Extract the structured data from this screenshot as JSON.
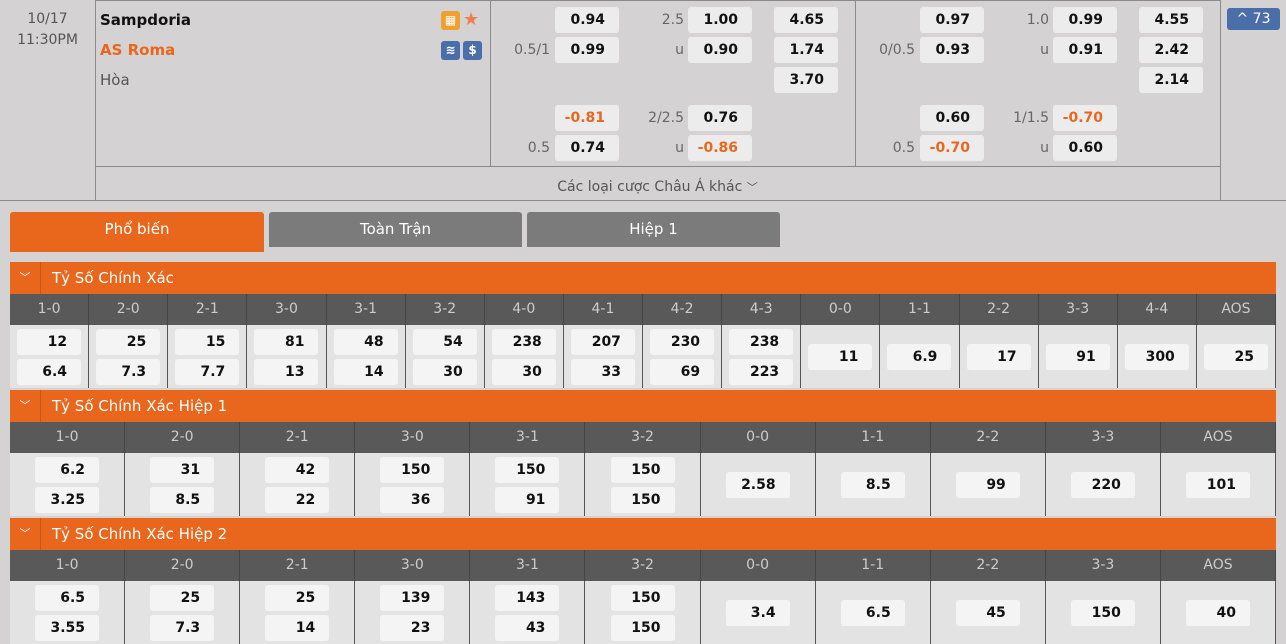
{
  "match": {
    "date": "10/17",
    "time": "11:30PM",
    "home": "Sampdoria",
    "away": "AS Roma",
    "draw": "Hòa",
    "more_label": "Các loại cược Châu Á khác",
    "more_count": "73"
  },
  "icons": {
    "field": "field-icon",
    "star": "star-icon",
    "stats": "stats-icon",
    "dollar": "dollar-icon"
  },
  "odds": [
    {
      "rows": [
        {
          "l1": "",
          "v1": "0.94",
          "l2": "2.5",
          "v2": "1.00",
          "v3": "4.65"
        },
        {
          "l1": "0.5/1",
          "v1": "0.99",
          "l2": "u",
          "v2": "0.90",
          "v3": "1.74"
        },
        {
          "l1": "",
          "v1": "",
          "l2": "",
          "v2": "",
          "v3": "3.70"
        },
        {
          "l1": "",
          "v1": "-0.81",
          "l2": "2/2.5",
          "v2": "0.76",
          "v3": ""
        },
        {
          "l1": "0.5",
          "v1": "0.74",
          "l2": "u",
          "v2": "-0.86",
          "v3": ""
        }
      ]
    },
    {
      "rows": [
        {
          "l1": "",
          "v1": "0.97",
          "l2": "1.0",
          "v2": "0.99",
          "v3": "4.55"
        },
        {
          "l1": "0/0.5",
          "v1": "0.93",
          "l2": "u",
          "v2": "0.91",
          "v3": "2.42"
        },
        {
          "l1": "",
          "v1": "",
          "l2": "",
          "v2": "",
          "v3": "2.14"
        },
        {
          "l1": "",
          "v1": "0.60",
          "l2": "1/1.5",
          "v2": "-0.70",
          "v3": ""
        },
        {
          "l1": "0.5",
          "v1": "-0.70",
          "l2": "u",
          "v2": "0.60",
          "v3": ""
        }
      ]
    }
  ],
  "tabs": [
    "Phổ biến",
    "Toàn Trận",
    "Hiệp 1"
  ],
  "sections": [
    {
      "title": "Tỷ Số Chính Xác",
      "cols": [
        {
          "h": "1-0",
          "v": [
            "12",
            "6.4"
          ]
        },
        {
          "h": "2-0",
          "v": [
            "25",
            "7.3"
          ]
        },
        {
          "h": "2-1",
          "v": [
            "15",
            "7.7"
          ]
        },
        {
          "h": "3-0",
          "v": [
            "81",
            "13"
          ]
        },
        {
          "h": "3-1",
          "v": [
            "48",
            "14"
          ]
        },
        {
          "h": "3-2",
          "v": [
            "54",
            "30"
          ]
        },
        {
          "h": "4-0",
          "v": [
            "238",
            "30"
          ]
        },
        {
          "h": "4-1",
          "v": [
            "207",
            "33"
          ]
        },
        {
          "h": "4-2",
          "v": [
            "230",
            "69"
          ]
        },
        {
          "h": "4-3",
          "v": [
            "238",
            "223"
          ]
        },
        {
          "h": "0-0",
          "v": [
            "11"
          ]
        },
        {
          "h": "1-1",
          "v": [
            "6.9"
          ]
        },
        {
          "h": "2-2",
          "v": [
            "17"
          ]
        },
        {
          "h": "3-3",
          "v": [
            "91"
          ]
        },
        {
          "h": "4-4",
          "v": [
            "300"
          ]
        },
        {
          "h": "AOS",
          "v": [
            "25"
          ]
        }
      ]
    },
    {
      "title": "Tỷ Số Chính Xác Hiệp 1",
      "cols": [
        {
          "h": "1-0",
          "v": [
            "6.2",
            "3.25"
          ]
        },
        {
          "h": "2-0",
          "v": [
            "31",
            "8.5"
          ]
        },
        {
          "h": "2-1",
          "v": [
            "42",
            "22"
          ]
        },
        {
          "h": "3-0",
          "v": [
            "150",
            "36"
          ]
        },
        {
          "h": "3-1",
          "v": [
            "150",
            "91"
          ]
        },
        {
          "h": "3-2",
          "v": [
            "150",
            "150"
          ]
        },
        {
          "h": "0-0",
          "v": [
            "2.58"
          ]
        },
        {
          "h": "1-1",
          "v": [
            "8.5"
          ]
        },
        {
          "h": "2-2",
          "v": [
            "99"
          ]
        },
        {
          "h": "3-3",
          "v": [
            "220"
          ]
        },
        {
          "h": "AOS",
          "v": [
            "101"
          ]
        }
      ]
    },
    {
      "title": "Tỷ Số Chính Xác Hiệp 2",
      "cols": [
        {
          "h": "1-0",
          "v": [
            "6.5",
            "3.55"
          ]
        },
        {
          "h": "2-0",
          "v": [
            "25",
            "7.3"
          ]
        },
        {
          "h": "2-1",
          "v": [
            "25",
            "14"
          ]
        },
        {
          "h": "3-0",
          "v": [
            "139",
            "23"
          ]
        },
        {
          "h": "3-1",
          "v": [
            "143",
            "43"
          ]
        },
        {
          "h": "3-2",
          "v": [
            "150",
            "150"
          ]
        },
        {
          "h": "0-0",
          "v": [
            "3.4"
          ]
        },
        {
          "h": "1-1",
          "v": [
            "6.5"
          ]
        },
        {
          "h": "2-2",
          "v": [
            "45"
          ]
        },
        {
          "h": "3-3",
          "v": [
            "150"
          ]
        },
        {
          "h": "AOS",
          "v": [
            "40"
          ]
        }
      ]
    }
  ],
  "colors": {
    "accent": "#e8671c",
    "tab_inactive": "#7b7b7b",
    "header_gray": "#595959",
    "badge": "#4a6ea8",
    "negative": "#e8671c"
  }
}
